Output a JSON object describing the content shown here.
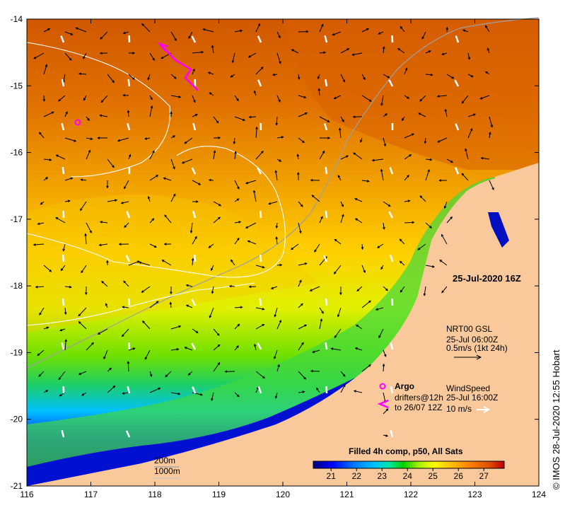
{
  "map": {
    "date_title": "25-Jul-2020 16Z",
    "credit": "©  IMOS 28-Jul-2020 12:55 Hobart",
    "lon_ticks": [
      "116",
      "117",
      "118",
      "119",
      "120",
      "121",
      "122",
      "123",
      "124"
    ],
    "lat_ticks": [
      "-14",
      "-15",
      "-16",
      "-17",
      "-18",
      "-19",
      "-20",
      "-21"
    ],
    "lon_range": [
      116,
      124
    ],
    "lat_range": [
      -21,
      -14
    ],
    "colors": {
      "land": "#f9c99b",
      "border": "#000000"
    }
  },
  "currents_legend": {
    "line1": "NRT00 GSL",
    "line2": "25-Jul 06:00Z",
    "line3": "0.5m/s (1kt 24h)"
  },
  "argo_legend": {
    "label": "Argo",
    "color": "#ff00ff"
  },
  "drifters_legend": {
    "line1": "drifters@12h",
    "line2": "to 26/07 12Z"
  },
  "wind_legend": {
    "line1": "WindSpeed",
    "line2": "25-Jul 16:00Z",
    "line3": "10 m/s"
  },
  "isobath_legend": {
    "contour1": "200m",
    "contour2": "1000m"
  },
  "colorbar": {
    "title": "Filled 4h comp, p50, All Sats",
    "ticks": [
      "21",
      "22",
      "23",
      "24",
      "25",
      "26",
      "27"
    ],
    "range": [
      20.3,
      27.8
    ],
    "stops": [
      "#00007f",
      "#0000ff",
      "#0080ff",
      "#00c0ff",
      "#00e8a0",
      "#00d000",
      "#a0f000",
      "#ffff00",
      "#ffc000",
      "#ff8000",
      "#e05000",
      "#c00000"
    ]
  }
}
